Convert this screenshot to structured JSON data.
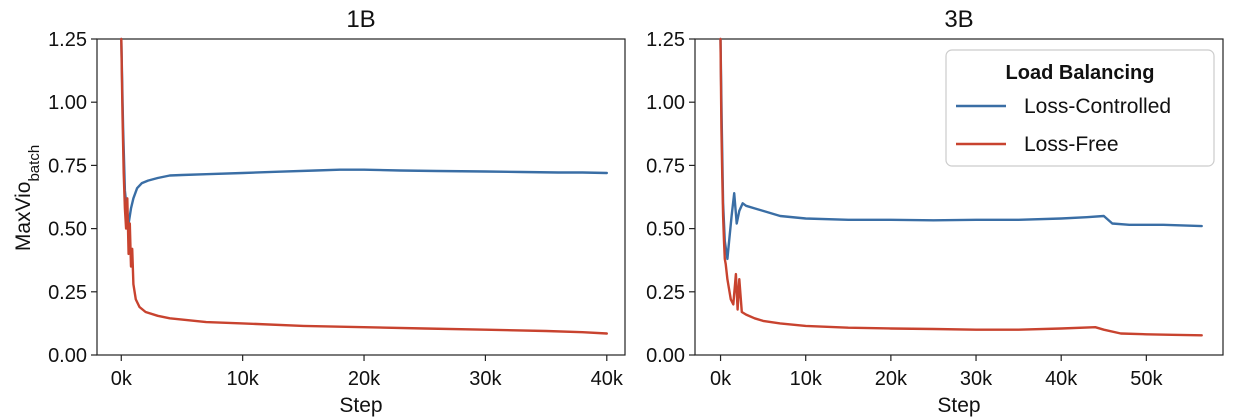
{
  "figure": {
    "ylabel_main": "MaxVio",
    "ylabel_sub": "batch",
    "legend": {
      "title": "Load Balancing",
      "items": [
        {
          "label": "Loss-Controlled",
          "color": "#3a6ea5"
        },
        {
          "label": "Loss-Free",
          "color": "#c8432f"
        }
      ],
      "placement": "top-right of 3B panel"
    }
  },
  "chart_data": [
    {
      "type": "line",
      "title": "1B",
      "xlabel": "Step",
      "ylabel": "MaxVio_batch",
      "xlim": [
        -2000,
        41500
      ],
      "ylim": [
        0,
        1.25
      ],
      "xticks": [
        0,
        10000,
        20000,
        30000,
        40000
      ],
      "xtick_labels": [
        "0k",
        "10k",
        "20k",
        "30k",
        "40k"
      ],
      "yticks": [
        0,
        0.25,
        0.5,
        0.75,
        1.0,
        1.25
      ],
      "ytick_labels": [
        "0.00",
        "0.25",
        "0.50",
        "0.75",
        "1.00",
        "1.25"
      ],
      "grid": false,
      "series": [
        {
          "name": "Loss-Controlled",
          "color": "#3a6ea5",
          "x": [
            0,
            150,
            300,
            450,
            600,
            800,
            1000,
            1300,
            1700,
            2200,
            3000,
            4000,
            5000,
            7000,
            10000,
            13000,
            16000,
            18000,
            20000,
            23000,
            26000,
            30000,
            33000,
            36000,
            38000,
            40000
          ],
          "y": [
            1.25,
            0.9,
            0.65,
            0.58,
            0.52,
            0.58,
            0.62,
            0.66,
            0.68,
            0.69,
            0.7,
            0.71,
            0.712,
            0.715,
            0.72,
            0.725,
            0.73,
            0.733,
            0.733,
            0.73,
            0.728,
            0.726,
            0.724,
            0.722,
            0.722,
            0.72
          ]
        },
        {
          "name": "Loss-Free",
          "color": "#c8432f",
          "x": [
            0,
            100,
            200,
            300,
            400,
            500,
            600,
            700,
            800,
            900,
            1000,
            1200,
            1500,
            2000,
            3000,
            4000,
            5000,
            7000,
            10000,
            15000,
            20000,
            25000,
            30000,
            35000,
            38000,
            40000
          ],
          "y": [
            1.25,
            0.95,
            0.72,
            0.58,
            0.5,
            0.62,
            0.4,
            0.52,
            0.35,
            0.42,
            0.28,
            0.22,
            0.19,
            0.17,
            0.155,
            0.145,
            0.14,
            0.13,
            0.125,
            0.115,
            0.11,
            0.105,
            0.1,
            0.095,
            0.09,
            0.085
          ]
        }
      ]
    },
    {
      "type": "line",
      "title": "3B",
      "xlabel": "Step",
      "ylabel": "",
      "xlim": [
        -3000,
        59000
      ],
      "ylim": [
        0,
        1.25
      ],
      "xticks": [
        0,
        10000,
        20000,
        30000,
        40000,
        50000
      ],
      "xtick_labels": [
        "0k",
        "10k",
        "20k",
        "30k",
        "40k",
        "50k"
      ],
      "yticks": [
        0,
        0.25,
        0.5,
        0.75,
        1.0,
        1.25
      ],
      "ytick_labels": [
        "0.00",
        "0.25",
        "0.50",
        "0.75",
        "1.00",
        "1.25"
      ],
      "grid": false,
      "series": [
        {
          "name": "Loss-Controlled",
          "color": "#3a6ea5",
          "x": [
            0,
            150,
            300,
            500,
            800,
            1000,
            1300,
            1600,
            1900,
            2200,
            2600,
            3000,
            4000,
            5000,
            7000,
            10000,
            15000,
            20000,
            25000,
            30000,
            35000,
            40000,
            43000,
            45000,
            46000,
            48000,
            52000,
            56500
          ],
          "y": [
            1.25,
            0.9,
            0.6,
            0.45,
            0.38,
            0.45,
            0.55,
            0.64,
            0.52,
            0.57,
            0.6,
            0.59,
            0.58,
            0.57,
            0.55,
            0.54,
            0.535,
            0.535,
            0.533,
            0.535,
            0.535,
            0.54,
            0.545,
            0.55,
            0.52,
            0.515,
            0.515,
            0.51
          ]
        },
        {
          "name": "Loss-Free",
          "color": "#c8432f",
          "x": [
            0,
            100,
            200,
            300,
            400,
            500,
            600,
            800,
            1000,
            1200,
            1500,
            1800,
            2000,
            2200,
            2500,
            3000,
            4000,
            5000,
            7000,
            10000,
            15000,
            20000,
            25000,
            30000,
            35000,
            40000,
            44000,
            45000,
            47000,
            50000,
            53000,
            56500
          ],
          "y": [
            1.25,
            0.9,
            0.7,
            0.55,
            0.45,
            0.38,
            0.36,
            0.3,
            0.26,
            0.22,
            0.2,
            0.32,
            0.18,
            0.3,
            0.17,
            0.16,
            0.145,
            0.135,
            0.125,
            0.115,
            0.108,
            0.105,
            0.103,
            0.1,
            0.1,
            0.105,
            0.11,
            0.1,
            0.085,
            0.082,
            0.08,
            0.078
          ]
        }
      ]
    }
  ]
}
